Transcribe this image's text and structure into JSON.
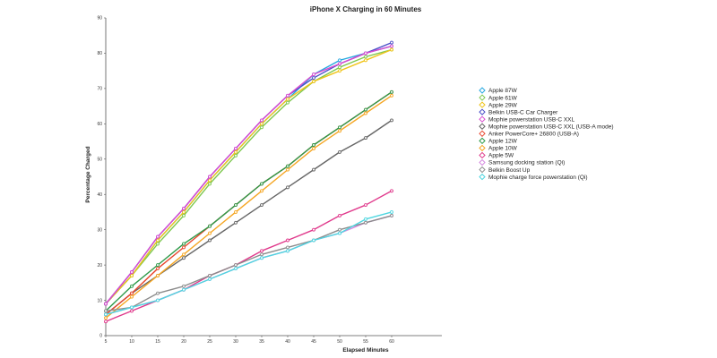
{
  "chart_data": {
    "type": "line",
    "title": "iPhone X Charging in 60 Minutes",
    "xlabel": "Elapsed Minutes",
    "ylabel": "Percentage Charged",
    "x_ticks": [
      "5",
      "10",
      "15",
      "20",
      "25",
      "30",
      "35",
      "40",
      "45",
      "50",
      "55",
      "60"
    ],
    "y_ticks": [
      "0",
      "10",
      "20",
      "30",
      "40",
      "50",
      "60",
      "70",
      "80",
      "90"
    ],
    "xlim": [
      5,
      60
    ],
    "ylim": [
      0,
      90
    ],
    "grid": false,
    "legend_position": "right",
    "x": [
      5,
      10,
      15,
      20,
      25,
      30,
      35,
      40,
      45,
      50,
      55,
      60
    ],
    "series": [
      {
        "name": "Apple 87W",
        "color": "#2aa9e0",
        "values": [
          9,
          17,
          27,
          35,
          44,
          52,
          60,
          67,
          74,
          78,
          80,
          82
        ]
      },
      {
        "name": "Apple 61W",
        "color": "#7ec850",
        "values": [
          9,
          17,
          26,
          34,
          43,
          51,
          59,
          66,
          72,
          76,
          79,
          81
        ]
      },
      {
        "name": "Apple 29W",
        "color": "#f0c419",
        "values": [
          9,
          17,
          27,
          35,
          44,
          52,
          60,
          67,
          72,
          75,
          78,
          81
        ]
      },
      {
        "name": "Belkin USB-C Car Charger",
        "color": "#4b50c8",
        "values": [
          9,
          18,
          28,
          36,
          45,
          53,
          61,
          68,
          73,
          77,
          80,
          83
        ]
      },
      {
        "name": "Mophie powerstation USB-C XXL",
        "color": "#d94bd0",
        "values": [
          9,
          18,
          28,
          36,
          45,
          53,
          61,
          68,
          74,
          77,
          80,
          82
        ]
      },
      {
        "name": "Mophie powerstation USB-C XXL (USB-A mode)",
        "color": "#666666",
        "values": [
          6,
          12,
          17,
          22,
          27,
          32,
          37,
          42,
          47,
          52,
          56,
          61
        ]
      },
      {
        "name": "Anker PowerCore+ 26800 (USB-A)",
        "color": "#e8452c",
        "values": [
          6,
          12,
          19,
          25,
          31,
          37,
          43,
          48,
          54,
          59,
          64,
          69
        ]
      },
      {
        "name": "Apple 12W",
        "color": "#2e9a4a",
        "values": [
          7,
          14,
          20,
          26,
          31,
          37,
          43,
          48,
          54,
          59,
          64,
          69
        ]
      },
      {
        "name": "Apple 10W",
        "color": "#f5a623",
        "values": [
          5,
          11,
          17,
          23,
          29,
          35,
          41,
          47,
          53,
          58,
          63,
          68
        ]
      },
      {
        "name": "Apple 5W",
        "color": "#e03a8c",
        "values": [
          4,
          7,
          10,
          13,
          17,
          20,
          24,
          27,
          30,
          34,
          37,
          41
        ]
      },
      {
        "name": "Samsung docking station (Qi)",
        "color": "#d58be0",
        "values": [
          6,
          8,
          10,
          13,
          16,
          19,
          22,
          24,
          27,
          29,
          32,
          34
        ]
      },
      {
        "name": "Belkin Boost Up",
        "color": "#8c8c8c",
        "values": [
          7,
          8,
          12,
          14,
          17,
          20,
          23,
          25,
          27,
          30,
          32,
          34
        ]
      },
      {
        "name": "Mophie charge force powerstation (Qi)",
        "color": "#4fd6e0",
        "values": [
          6,
          8,
          10,
          13,
          16,
          19,
          22,
          24,
          27,
          29,
          33,
          35
        ]
      }
    ]
  }
}
